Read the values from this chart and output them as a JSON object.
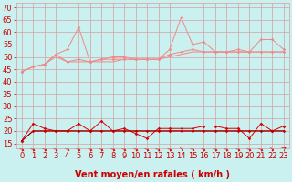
{
  "background_color": "#caf0f0",
  "grid_color": "#d4a0a0",
  "title": "",
  "xlabel": "Vent moyen/en rafales ( km/h )",
  "ylabel": "",
  "xlim": [
    -0.5,
    23.5
  ],
  "ylim": [
    13,
    72
  ],
  "yticks": [
    15,
    20,
    25,
    30,
    35,
    40,
    45,
    50,
    55,
    60,
    65,
    70
  ],
  "xticks": [
    0,
    1,
    2,
    3,
    4,
    5,
    6,
    7,
    8,
    9,
    10,
    11,
    12,
    13,
    14,
    15,
    16,
    17,
    18,
    19,
    20,
    21,
    22,
    23
  ],
  "x": [
    0,
    1,
    2,
    3,
    4,
    5,
    6,
    7,
    8,
    9,
    10,
    11,
    12,
    13,
    14,
    15,
    16,
    17,
    18,
    19,
    20,
    21,
    22,
    23
  ],
  "upper_line1": [
    44,
    46,
    47,
    51,
    53,
    62,
    48,
    49,
    50,
    50,
    49,
    49,
    49,
    53,
    66,
    55,
    56,
    52,
    52,
    53,
    52,
    57,
    57,
    53
  ],
  "upper_line2": [
    44,
    46,
    47,
    51,
    48,
    49,
    48,
    49,
    49,
    49,
    49,
    49,
    49,
    51,
    52,
    53,
    52,
    52,
    52,
    52,
    52,
    52,
    52,
    52
  ],
  "upper_line3": [
    44,
    46,
    47,
    50,
    48,
    48,
    48,
    48,
    48,
    49,
    49,
    49,
    49,
    50,
    51,
    52,
    52,
    52,
    52,
    52,
    52,
    52,
    52,
    52
  ],
  "lower_line1": [
    16,
    23,
    21,
    20,
    20,
    23,
    20,
    24,
    20,
    21,
    19,
    17,
    21,
    21,
    21,
    21,
    22,
    22,
    21,
    21,
    17,
    23,
    20,
    22
  ],
  "lower_line2": [
    16,
    20,
    20,
    20,
    20,
    20,
    20,
    20,
    20,
    20,
    20,
    20,
    20,
    20,
    20,
    20,
    20,
    20,
    20,
    20,
    20,
    20,
    20,
    20
  ],
  "lower_line3": [
    16,
    20,
    20,
    20,
    20,
    20,
    20,
    20,
    20,
    20,
    20,
    20,
    20,
    20,
    20,
    20,
    20,
    20,
    20,
    20,
    20,
    20,
    20,
    20
  ],
  "upper_color1": "#f08888",
  "upper_color2": "#f08888",
  "upper_color3": "#f08888",
  "lower_color1": "#dd0000",
  "lower_color2": "#dd0000",
  "lower_color3": "#880000",
  "marker": "D",
  "marker_size": 1.8,
  "xlabel_color": "#cc0000",
  "xlabel_fontsize": 7,
  "tick_color": "#cc0000",
  "tick_fontsize": 6,
  "arrow_dirs": [
    3,
    3,
    3,
    3,
    3,
    3,
    3,
    3,
    3,
    3,
    3,
    3,
    3,
    3,
    2,
    3,
    3,
    3,
    3,
    3,
    3,
    3,
    2,
    1
  ]
}
